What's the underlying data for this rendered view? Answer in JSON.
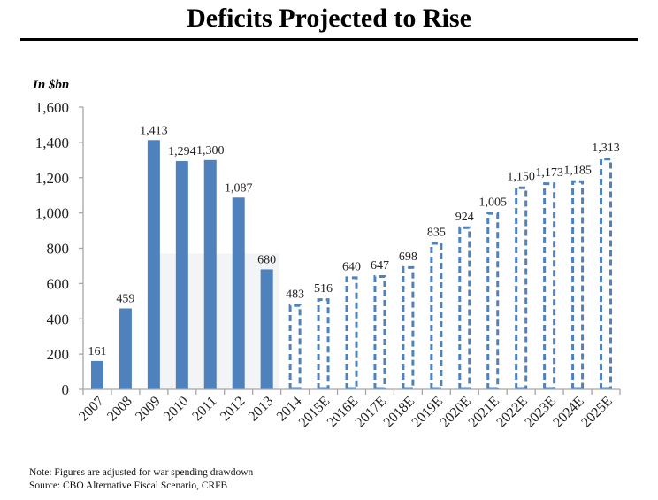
{
  "header": {
    "title": "Deficits Projected to Rise"
  },
  "notes": {
    "note": "Note: Figures are adjusted for war spending drawdown",
    "source": "Source: CBO Alternative Fiscal Scenario, CRFB"
  },
  "colors": {
    "bar": "#4f81bd",
    "axis": "#a6a6a6",
    "shade": "#f2f4f6"
  },
  "chart_data": {
    "type": "bar",
    "title": "Deficits Projected to Rise",
    "ylabel": "In $bn",
    "xlabel": "",
    "ylim": [
      0,
      1600
    ],
    "yticks": [
      0,
      200,
      400,
      600,
      800,
      1000,
      1200,
      1400,
      1600
    ],
    "ytick_labels": [
      "0",
      "200",
      "400",
      "600",
      "800",
      "1,000",
      "1,200",
      "1,400",
      "1,600"
    ],
    "grid": false,
    "legend": "none",
    "categories": [
      "2007",
      "2008",
      "2009",
      "2010",
      "2011",
      "2012",
      "2013",
      "2014",
      "2015E",
      "2016E",
      "2017E",
      "2018E",
      "2019E",
      "2020E",
      "2021E",
      "2022E",
      "2023E",
      "2024E",
      "2025E"
    ],
    "values": [
      161,
      459,
      1413,
      1294,
      1300,
      1087,
      680,
      483,
      516,
      640,
      647,
      698,
      835,
      924,
      1005,
      1150,
      1173,
      1185,
      1313
    ],
    "value_labels": [
      "161",
      "459",
      "1,413",
      "1,294",
      "1,300",
      "1,087",
      "680",
      "483",
      "516",
      "640",
      "647",
      "698",
      "835",
      "924",
      "1,005",
      "1,150",
      "1,173",
      "1,185",
      "1,313"
    ],
    "styles": [
      "actual",
      "actual",
      "actual",
      "actual",
      "actual",
      "actual",
      "actual",
      "projected",
      "projected",
      "projected",
      "projected",
      "projected",
      "projected",
      "projected",
      "projected",
      "projected",
      "projected",
      "projected",
      "projected"
    ],
    "style_legend": {
      "actual": "solid filled bar",
      "projected": "dashed outline bar"
    },
    "shaded_band": {
      "from_category": "2009",
      "to_category": "2013",
      "y_top": 770
    }
  }
}
